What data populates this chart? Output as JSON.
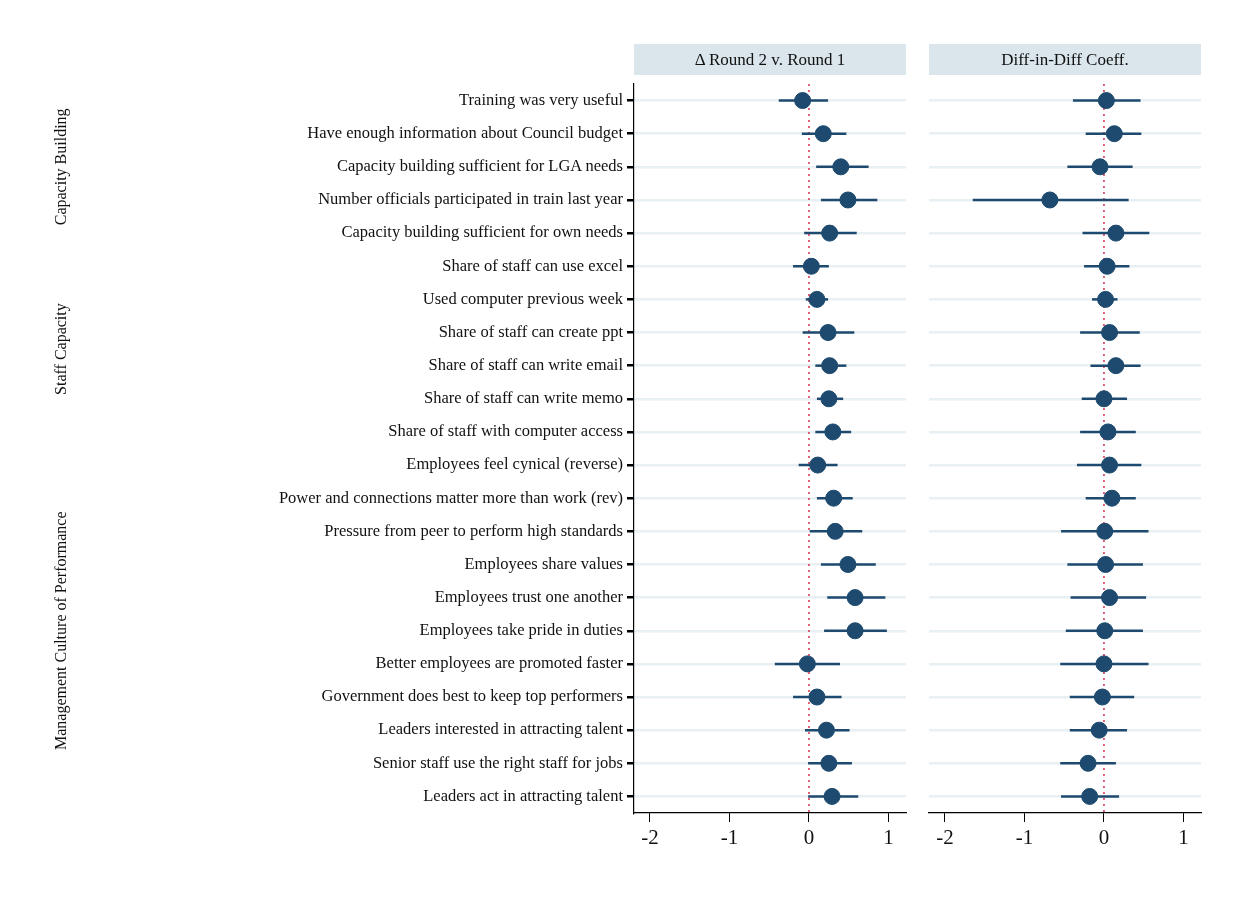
{
  "chart_data": [
    {
      "type": "scatter",
      "orientation": "horizontal",
      "title": "Δ Round 2 v. Round 1",
      "categories": [
        "Training was very useful",
        "Have enough information about Council budget",
        "Capacity building sufficient for LGA needs",
        "Number officials participated in train last year",
        "Capacity building sufficient for own needs",
        "Share of staff can use excel",
        "Used computer previous week",
        "Share of staff can create ppt",
        "Share of staff can write email",
        "Share of staff can write memo",
        "Share of staff with computer access",
        "Employees feel cynical (reverse)",
        "Power and connections matter more than work (rev)",
        "Pressure from peer to perform high standards",
        "Employees share values",
        "Employees trust one another",
        "Employees take pride in duties",
        "Better employees are promoted faster",
        "Government does best to keep top performers",
        "Leaders interested in attracting talent",
        "Senior staff use the right staff for jobs",
        "Leaders act in attracting talent"
      ],
      "values": [
        -0.08,
        0.18,
        0.4,
        0.49,
        0.26,
        0.03,
        0.1,
        0.24,
        0.26,
        0.25,
        0.3,
        0.11,
        0.31,
        0.33,
        0.49,
        0.58,
        0.58,
        -0.02,
        0.1,
        0.22,
        0.25,
        0.29
      ],
      "errors": [
        [
          -0.38,
          0.24
        ],
        [
          -0.09,
          0.47
        ],
        [
          0.09,
          0.75
        ],
        [
          0.15,
          0.86
        ],
        [
          -0.06,
          0.6
        ],
        [
          -0.2,
          0.25
        ],
        [
          -0.04,
          0.24
        ],
        [
          -0.08,
          0.57
        ],
        [
          0.08,
          0.47
        ],
        [
          0.1,
          0.43
        ],
        [
          0.08,
          0.53
        ],
        [
          -0.13,
          0.36
        ],
        [
          0.1,
          0.55
        ],
        [
          0.01,
          0.67
        ],
        [
          0.15,
          0.84
        ],
        [
          0.23,
          0.96
        ],
        [
          0.19,
          0.98
        ],
        [
          -0.43,
          0.39
        ],
        [
          -0.2,
          0.41
        ],
        [
          -0.05,
          0.51
        ],
        [
          -0.01,
          0.54
        ],
        [
          -0.01,
          0.62
        ]
      ],
      "color": "#1d4a6e",
      "marker": "circle",
      "grid": "y",
      "xlim": [
        -2.2,
        1.22
      ],
      "xticks": [
        -2,
        -1,
        0,
        1
      ],
      "ref_lines": [
        {
          "axis": "x",
          "value": 0,
          "color": "#d9304f",
          "line_style": "dotted"
        }
      ],
      "annotations": [
        "Capacity Building",
        "Staff Capacity",
        "Management Culture of Performance"
      ]
    },
    {
      "type": "scatter",
      "orientation": "horizontal",
      "title": "Diff-in-Diff Coeff.",
      "categories": [
        null,
        null,
        null,
        null,
        null,
        null,
        null,
        null,
        null,
        null,
        null,
        null,
        null,
        null,
        null,
        null,
        null,
        null,
        null,
        null,
        null,
        null
      ],
      "values": [
        0.03,
        0.13,
        -0.05,
        -0.68,
        0.15,
        0.04,
        0.02,
        0.07,
        0.15,
        0.0,
        0.05,
        0.07,
        0.1,
        0.01,
        0.02,
        0.07,
        0.01,
        0.0,
        -0.02,
        -0.06,
        -0.2,
        -0.18
      ],
      "errors": [
        [
          -0.39,
          0.46
        ],
        [
          -0.23,
          0.47
        ],
        [
          -0.46,
          0.36
        ],
        [
          -1.65,
          0.31
        ],
        [
          -0.27,
          0.57
        ],
        [
          -0.25,
          0.32
        ],
        [
          -0.15,
          0.17
        ],
        [
          -0.3,
          0.45
        ],
        [
          -0.17,
          0.46
        ],
        [
          -0.28,
          0.29
        ],
        [
          -0.3,
          0.4
        ],
        [
          -0.34,
          0.47
        ],
        [
          -0.23,
          0.4
        ],
        [
          -0.54,
          0.56
        ],
        [
          -0.46,
          0.49
        ],
        [
          -0.42,
          0.53
        ],
        [
          -0.48,
          0.49
        ],
        [
          -0.55,
          0.56
        ],
        [
          -0.43,
          0.38
        ],
        [
          -0.43,
          0.29
        ],
        [
          -0.55,
          0.15
        ],
        [
          -0.54,
          0.19
        ]
      ],
      "color": "#1d4a6e",
      "marker": "circle",
      "grid": "y",
      "tick_labels": "x",
      "xlim": [
        -2.2,
        1.22
      ],
      "xticks": [
        -2,
        -1,
        0,
        1
      ],
      "ref_lines": [
        {
          "axis": "x",
          "value": 0,
          "color": "#d9304f",
          "line_style": "dotted"
        }
      ]
    }
  ]
}
